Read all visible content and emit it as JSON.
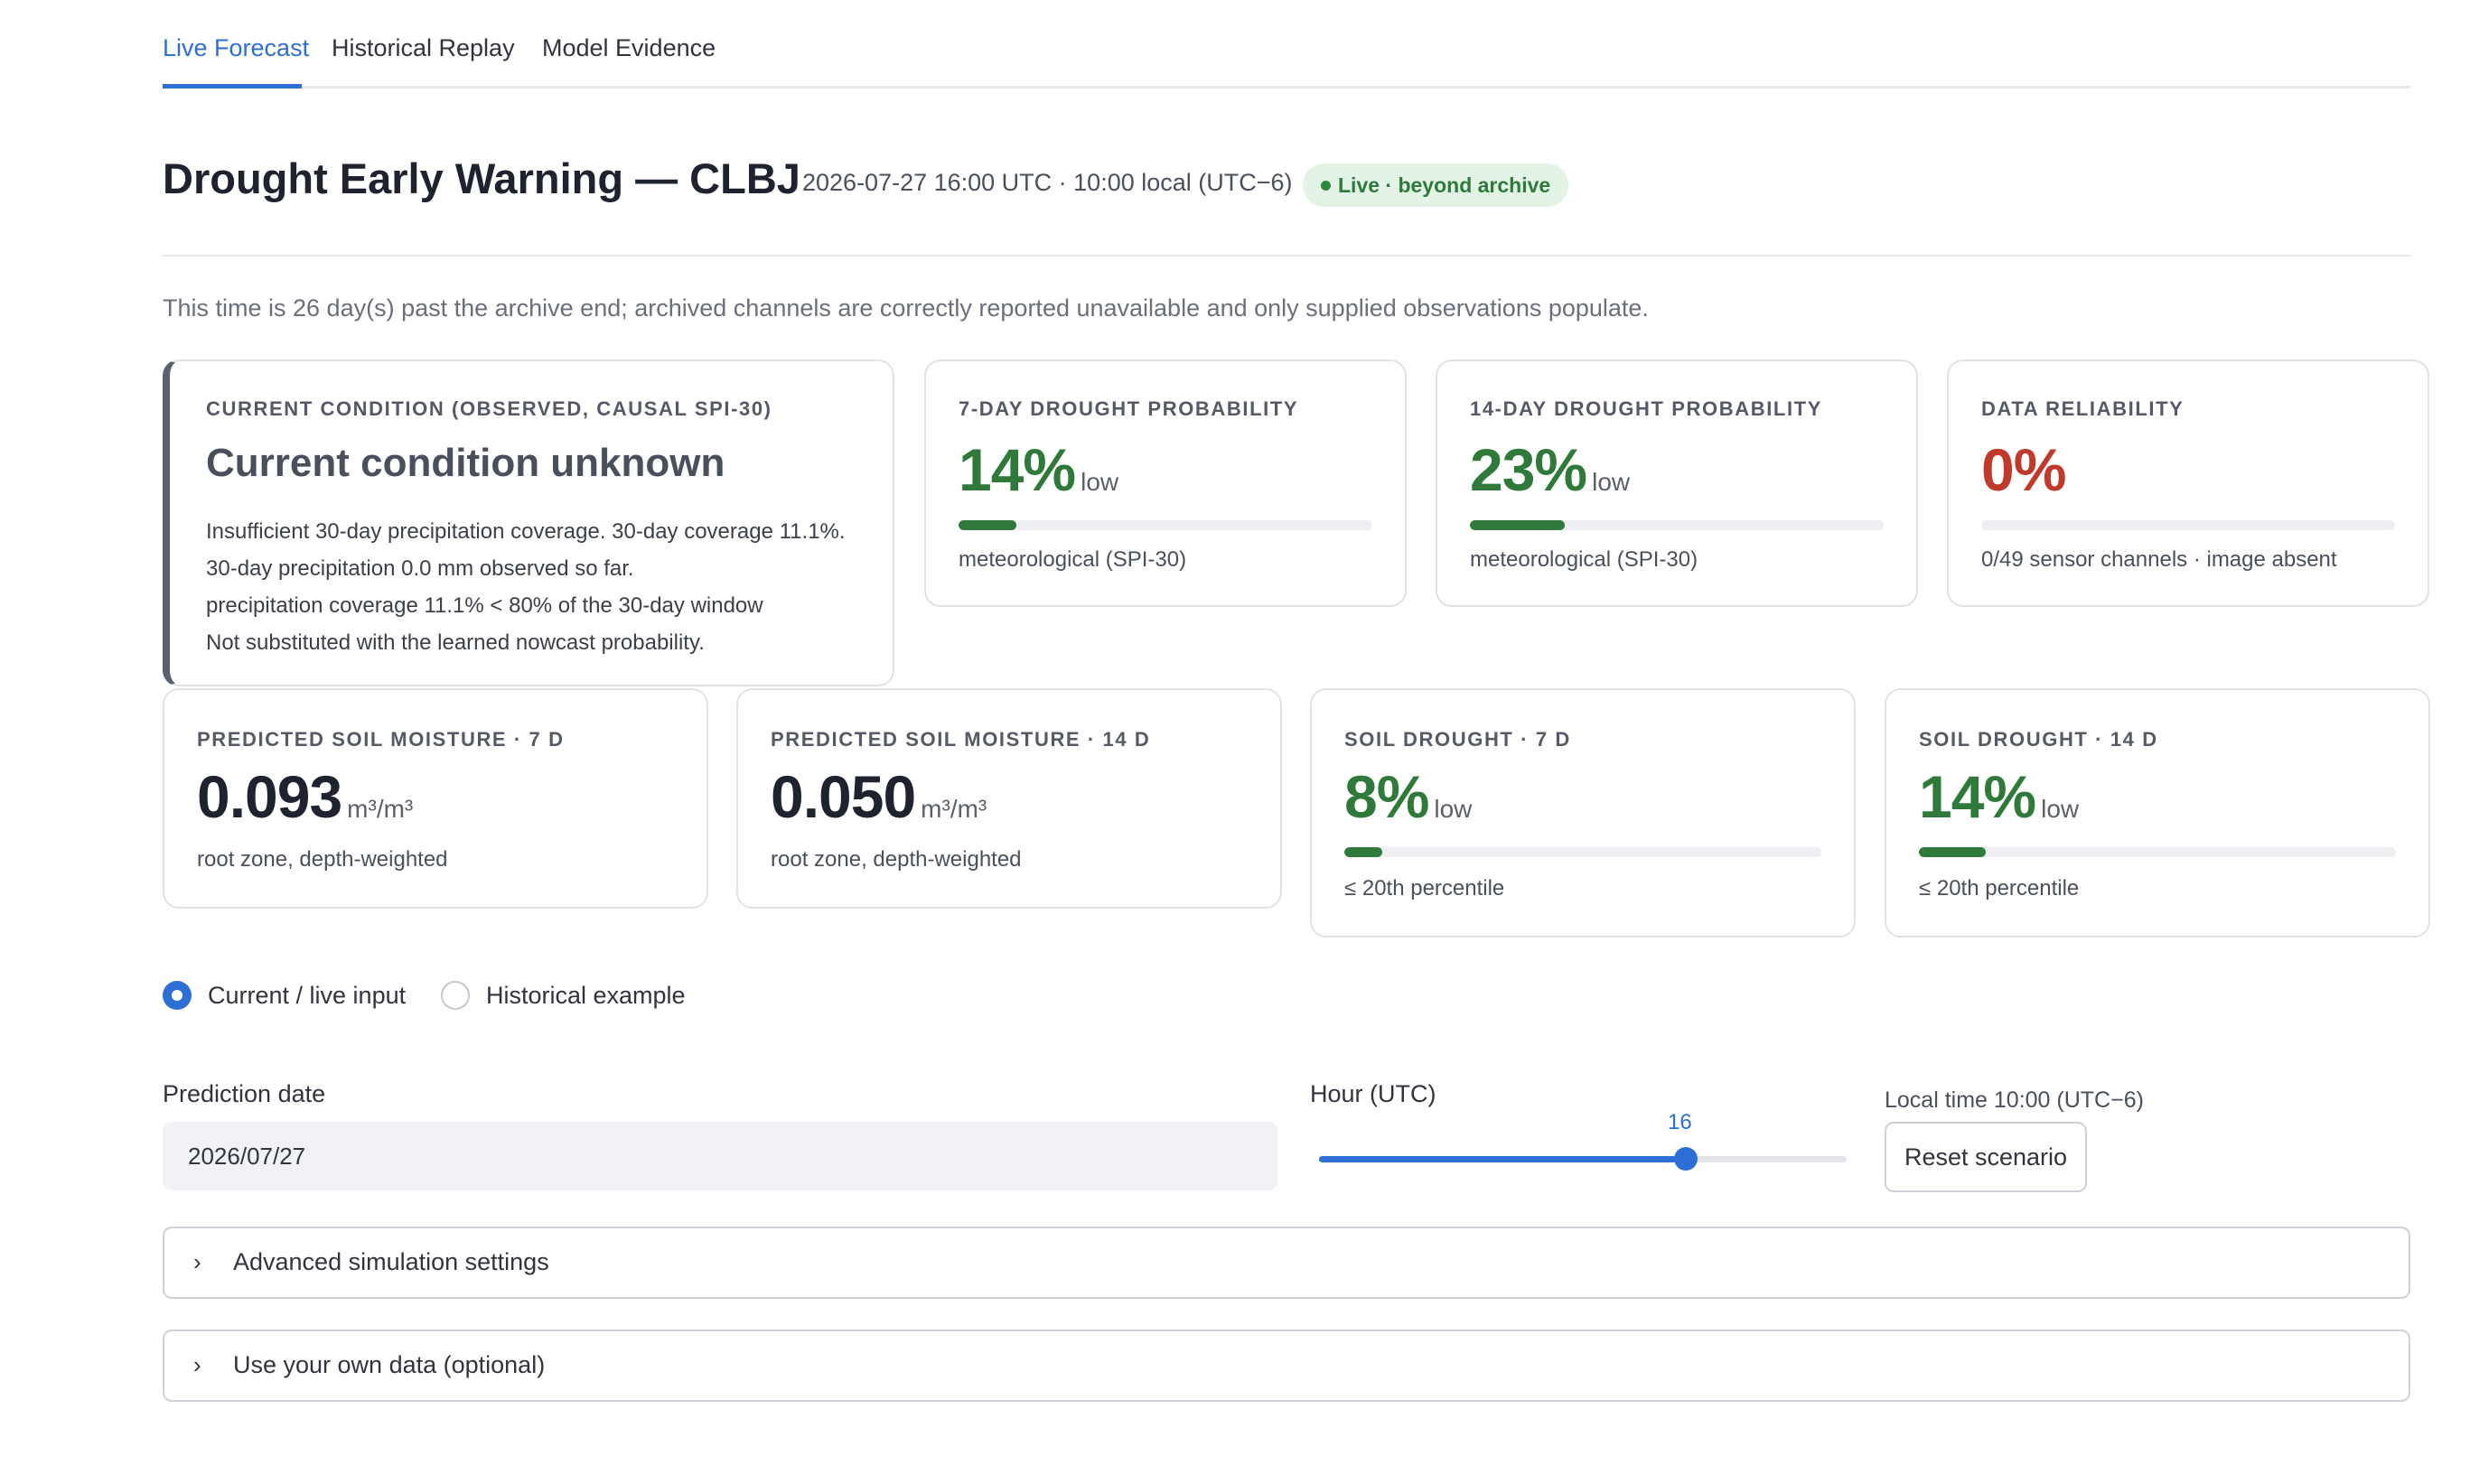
{
  "tabs": [
    {
      "label": "Live Forecast",
      "active": true
    },
    {
      "label": "Historical Replay",
      "active": false
    },
    {
      "label": "Model Evidence",
      "active": false
    }
  ],
  "header": {
    "title": "Drought Early Warning — CLBJ",
    "timestamp": "2026-07-27 16:00 UTC  ·  10:00 local (UTC−6)",
    "badge": "Live · beyond archive"
  },
  "note": "This time is 26 day(s) past the archive end; archived channels are correctly reported unavailable and only supplied observations populate.",
  "condition_card": {
    "label": "Current condition (observed, causal SPI-30)",
    "value": "Current condition unknown",
    "lines": [
      "Insufficient 30-day precipitation coverage. 30-day coverage 11.1%.",
      "30-day precipitation 0.0 mm observed so far.",
      "precipitation coverage 11.1% < 80% of the 30-day window",
      "Not substituted with the learned nowcast probability."
    ]
  },
  "prob7": {
    "label": "7-day drought probability",
    "value": "14%",
    "level": "low",
    "fraction": 0.14,
    "sub": "meteorological (SPI-30)"
  },
  "prob14": {
    "label": "14-day drought probability",
    "value": "23%",
    "level": "low",
    "fraction": 0.23,
    "sub": "meteorological (SPI-30)"
  },
  "reliability": {
    "label": "Data reliability",
    "value": "0%",
    "fraction": 0.0,
    "sub": "0/49 sensor channels · image absent"
  },
  "sm7": {
    "label": "Predicted soil moisture · 7 d",
    "value": "0.093",
    "unit": "m³/m³",
    "sub": "root zone, depth-weighted"
  },
  "sm14": {
    "label": "Predicted soil moisture · 14 d",
    "value": "0.050",
    "unit": "m³/m³",
    "sub": "root zone, depth-weighted"
  },
  "sd7": {
    "label": "Soil drought · 7 d",
    "value": "8%",
    "level": "low",
    "fraction": 0.08,
    "sub": "≤ 20th percentile"
  },
  "sd14": {
    "label": "Soil drought · 14 d",
    "value": "14%",
    "level": "low",
    "fraction": 0.14,
    "sub": "≤ 20th percentile"
  },
  "input_mode": {
    "options": [
      "Current / live input",
      "Historical example"
    ],
    "selected": "Current / live input"
  },
  "prediction_date": {
    "label": "Prediction date",
    "value": "2026/07/27"
  },
  "hour": {
    "label": "Hour (UTC)",
    "value": "16",
    "min": 0,
    "max": 23,
    "current": 16
  },
  "local_time": "Local time 10:00 (UTC−6)",
  "reset_label": "Reset scenario",
  "expanders": [
    "Advanced simulation settings",
    "Use your own data (optional)"
  ],
  "colors": {
    "accent": "#2e6fd6",
    "good": "#2f7a3a",
    "bad": "#c0392b"
  }
}
